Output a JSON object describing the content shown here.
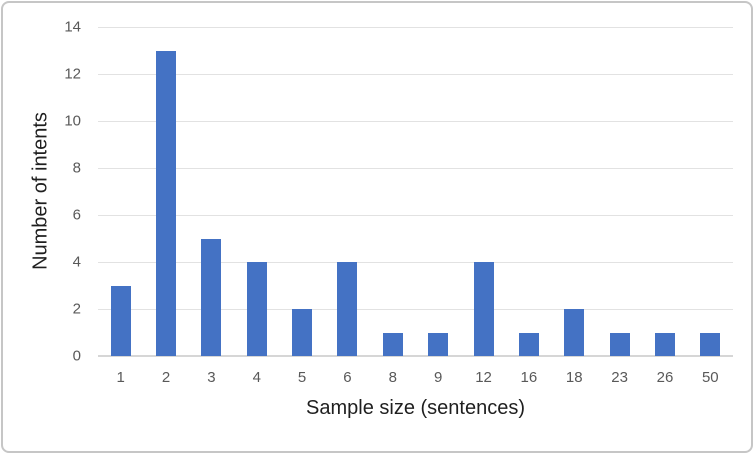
{
  "chart_data": {
    "type": "bar",
    "title": "",
    "categories": [
      "1",
      "2",
      "3",
      "4",
      "5",
      "6",
      "8",
      "9",
      "12",
      "16",
      "18",
      "23",
      "26",
      "50"
    ],
    "values": [
      3,
      13,
      5,
      4,
      2,
      4,
      1,
      1,
      4,
      1,
      2,
      1,
      1,
      1
    ],
    "xlabel": "Sample size (sentences)",
    "ylabel": "Number of intents",
    "ylim": [
      0,
      14
    ],
    "yticks": [
      0,
      2,
      4,
      6,
      8,
      10,
      12,
      14
    ],
    "grid": true,
    "legend_position": "none",
    "colors": {
      "bar": "#4472C4",
      "gridline": "#e2e2e2",
      "axis_line": "#d6d6d6",
      "tick_label": "#595959",
      "axis_title": "#1f1f1f",
      "frame_border": "#c6c6c6"
    }
  }
}
